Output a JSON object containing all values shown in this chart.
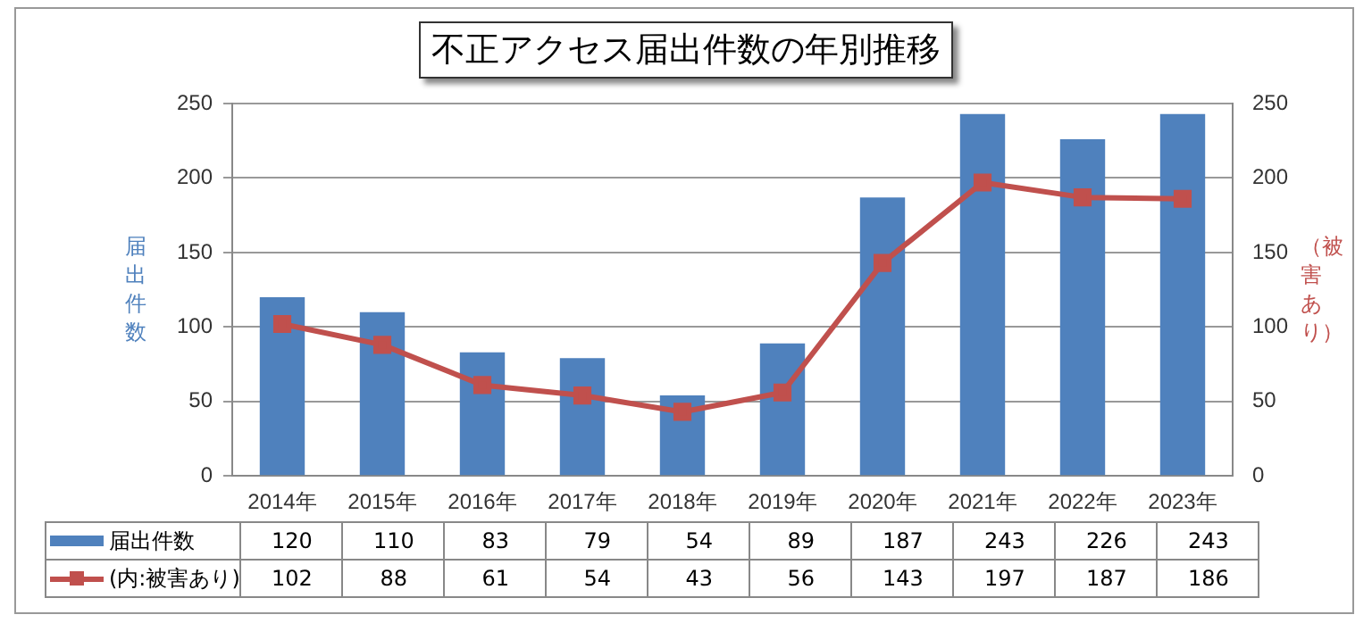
{
  "chart_data": {
    "type": "bar",
    "title": "不正アクセス届出件数の年別推移",
    "ylabel": "届出件数",
    "y2label": "（被害あり）",
    "categories": [
      "2014年",
      "2015年",
      "2016年",
      "2017年",
      "2018年",
      "2019年",
      "2020年",
      "2021年",
      "2022年",
      "2023年"
    ],
    "series": [
      {
        "name": "届出件数",
        "color": "#4f81bd",
        "values": [
          120,
          110,
          83,
          79,
          54,
          89,
          187,
          243,
          226,
          243
        ]
      },
      {
        "name": "(内:被害あり)",
        "type": "line",
        "axis": "y2",
        "color": "#c0504d",
        "values": [
          102,
          88,
          61,
          54,
          43,
          56,
          143,
          197,
          187,
          186
        ]
      }
    ],
    "ylim": [
      0,
      250
    ],
    "yticks": [
      0,
      50,
      100,
      150,
      200,
      250
    ],
    "y2lim": [
      0,
      250
    ],
    "y2ticks": [
      0,
      50,
      100,
      150,
      200,
      250
    ],
    "grid": "y",
    "marker": "square",
    "line_style": "solid",
    "legend": "bottom left",
    "data_labels": true
  }
}
